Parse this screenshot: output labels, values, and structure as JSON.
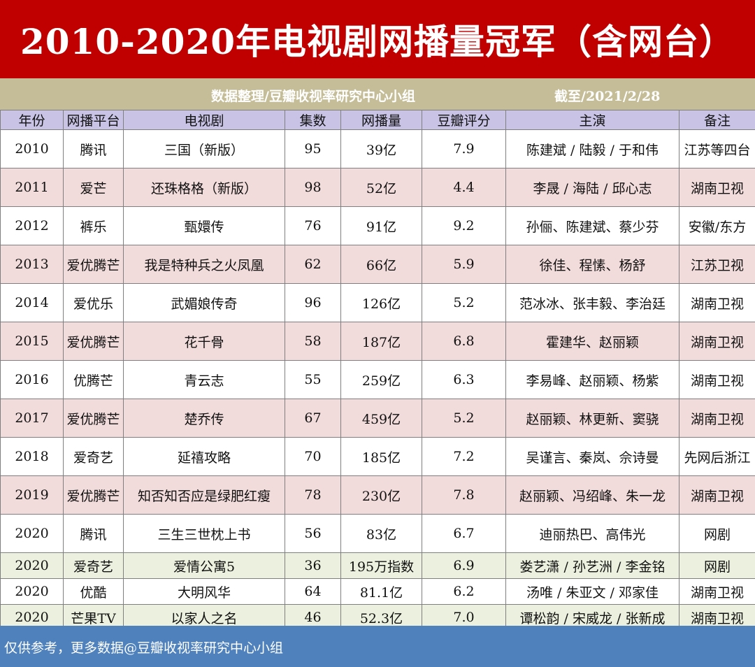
{
  "title": "2010-2020年电视剧网播量冠军（含网台）",
  "subtitle": {
    "source": "数据整理/豆瓣收视率研究中心小组",
    "as_of": "截至/2021/2/28"
  },
  "headers": [
    "年份",
    "网播平台",
    "电视剧",
    "集数",
    "网播量",
    "豆瓣评分",
    "主演",
    "备注"
  ],
  "rows": [
    {
      "year": "2010",
      "platform": "腾讯",
      "drama": "三国（新版）",
      "episodes": "95",
      "views": "39亿",
      "rating": "7.9",
      "cast": "陈建斌 / 陆毅 / 于和伟",
      "note": "江苏等四台"
    },
    {
      "year": "2011",
      "platform": "爱芒",
      "drama": "还珠格格（新版）",
      "episodes": "98",
      "views": "52亿",
      "rating": "4.4",
      "cast": "李晟 / 海陆 / 邱心志",
      "note": "湖南卫视"
    },
    {
      "year": "2012",
      "platform": "裤乐",
      "drama": "甄嬛传",
      "episodes": "76",
      "views": "91亿",
      "rating": "9.2",
      "cast": "孙俪、陈建斌、蔡少芬",
      "note": "安徽/东方"
    },
    {
      "year": "2013",
      "platform": "爱优腾芒",
      "drama": "我是特种兵之火凤凰",
      "episodes": "62",
      "views": "66亿",
      "rating": "5.9",
      "cast": "徐佳、程愫、杨舒",
      "note": "江苏卫视"
    },
    {
      "year": "2014",
      "platform": "爱优乐",
      "drama": "武媚娘传奇",
      "episodes": "96",
      "views": "126亿",
      "rating": "5.2",
      "cast": "范冰冰、张丰毅、李治廷",
      "note": "湖南卫视"
    },
    {
      "year": "2015",
      "platform": "爱优腾芒",
      "drama": "花千骨",
      "episodes": "58",
      "views": "187亿",
      "rating": "6.8",
      "cast": "霍建华、赵丽颖",
      "note": "湖南卫视"
    },
    {
      "year": "2016",
      "platform": "优腾芒",
      "drama": "青云志",
      "episodes": "55",
      "views": "259亿",
      "rating": "6.3",
      "cast": "李易峰、赵丽颖、杨紫",
      "note": "湖南卫视"
    },
    {
      "year": "2017",
      "platform": "爱优腾芒",
      "drama": "楚乔传",
      "episodes": "67",
      "views": "459亿",
      "rating": "5.2",
      "cast": "赵丽颖、林更新、窦骁",
      "note": "湖南卫视"
    },
    {
      "year": "2018",
      "platform": "爱奇艺",
      "drama": "延禧攻略",
      "episodes": "70",
      "views": "185亿",
      "rating": "7.2",
      "cast": "吴谨言、秦岚、佘诗曼",
      "note": "先网后浙江"
    },
    {
      "year": "2019",
      "platform": "爱优腾芒",
      "drama": "知否知否应是绿肥红瘦",
      "episodes": "78",
      "views": "230亿",
      "rating": "7.8",
      "cast": "赵丽颖、冯绍峰、朱一龙",
      "note": "湖南卫视"
    },
    {
      "year": "2020",
      "platform": "腾讯",
      "drama": "三生三世枕上书",
      "episodes": "56",
      "views": "83亿",
      "rating": "6.7",
      "cast": "迪丽热巴、高伟光",
      "note": "网剧"
    },
    {
      "year": "2020",
      "platform": "爱奇艺",
      "drama": "爱情公寓5",
      "episodes": "36",
      "views": "195万指数",
      "rating": "6.9",
      "cast": "娄艺潇 / 孙艺洲 / 李金铭",
      "note": "网剧"
    },
    {
      "year": "2020",
      "platform": "优酷",
      "drama": "大明风华",
      "episodes": "64",
      "views": "81.1亿",
      "rating": "6.2",
      "cast": "汤唯 / 朱亚文 / 邓家佳",
      "note": "湖南卫视"
    },
    {
      "year": "2020",
      "platform": "芒果TV",
      "drama": "以家人之名",
      "episodes": "46",
      "views": "52.3亿",
      "rating": "7.0",
      "cast": "谭松韵 / 宋威龙 / 张新成",
      "note": "湖南卫视"
    }
  ],
  "footer": "仅供参考，更多数据@豆瓣收视率研究中心小组",
  "colors": {
    "title_bg": "#c00000",
    "subtitle_bg": "#c4bd97",
    "header_bg": "#c9c3e6",
    "row_pink": "#f2dcdb",
    "row_green": "#ebf1de",
    "footer_bg": "#4f81bd"
  }
}
